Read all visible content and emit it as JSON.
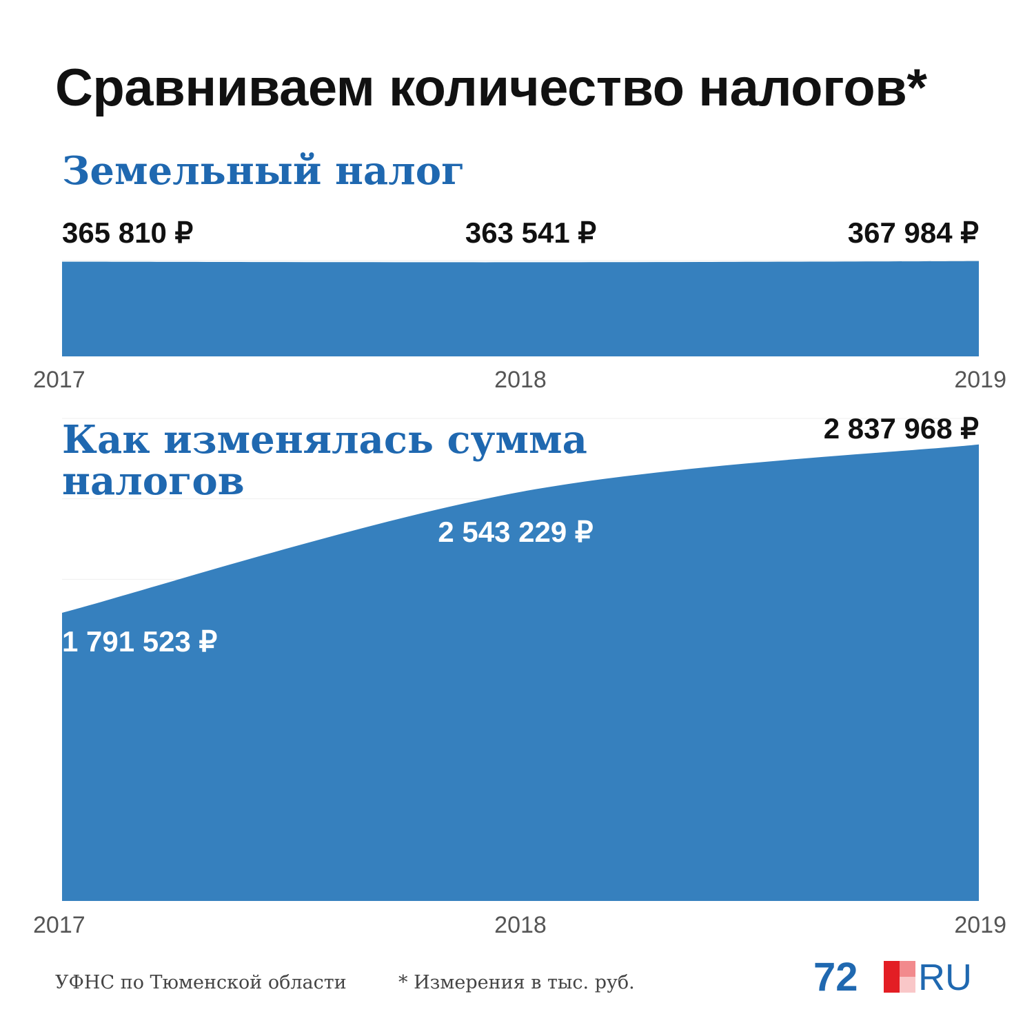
{
  "title": "Сравниваем количество налогов*",
  "colors": {
    "area": "#3680be",
    "title_blue": "#1f68b0",
    "text_dark": "#111111",
    "axis_text": "#555555",
    "logo_red": "#e31e24",
    "logo_pink": "#f28a8d",
    "logo_light": "#f9c7c8"
  },
  "chart_data": [
    {
      "type": "area",
      "title": "Земельный налог",
      "x": [
        "2017",
        "2018",
        "2019"
      ],
      "series": [
        {
          "values": [
            365810,
            363541,
            367984
          ],
          "labels": [
            "365 810 ₽",
            "363 541 ₽",
            "367 984 ₽"
          ]
        }
      ],
      "label_color": "#111111",
      "grid": true,
      "ylim": [
        0,
        370000
      ]
    },
    {
      "type": "area",
      "title": "Как изменялась сумма налогов",
      "x": [
        "2017",
        "2018",
        "2019"
      ],
      "series": [
        {
          "values": [
            1791523,
            2543229,
            2837968
          ],
          "labels": [
            "1 791 523 ₽",
            "2 543 229 ₽",
            "2 837 968 ₽"
          ]
        }
      ],
      "label_colors": [
        "#ffffff",
        "#ffffff",
        "#111111"
      ],
      "grid": true,
      "ylim": [
        0,
        3000000
      ]
    }
  ],
  "footer": {
    "source": "УФНС по Тюменской области",
    "note": "* Измерения в тыс. руб."
  },
  "logo": {
    "number": "72",
    "suffix": "RU"
  }
}
